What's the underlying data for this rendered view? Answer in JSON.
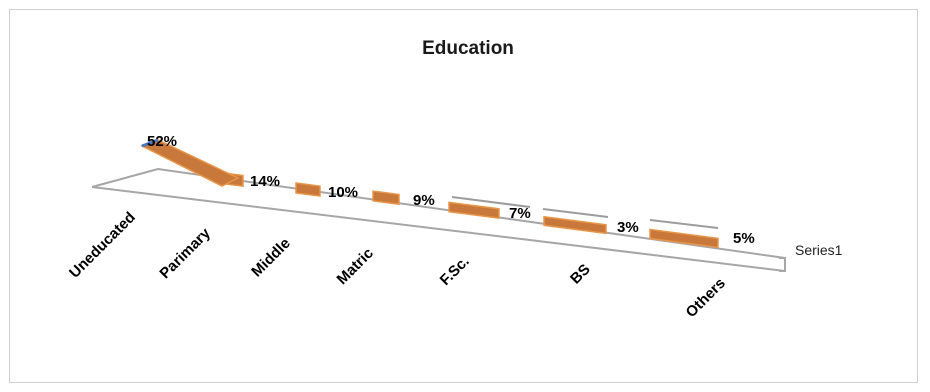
{
  "chart_data": {
    "type": "bar",
    "title": "Education",
    "categories": [
      "Uneducated",
      "Parimary",
      "Middle",
      "Matric",
      "F.Sc.",
      "BS",
      "Others"
    ],
    "series": [
      {
        "name": "Series1",
        "values": [
          52,
          14,
          10,
          9,
          7,
          3,
          5
        ]
      }
    ],
    "data_labels": [
      "52%",
      "14%",
      "10%",
      "9%",
      "7%",
      "3%",
      "5%"
    ],
    "legend_placement": "right",
    "three_d": true,
    "colors": {
      "bar": "#c8783a",
      "bar_edge": "#e89548",
      "floor": "#a6a6a6",
      "highlight": "#4a78c2"
    }
  }
}
